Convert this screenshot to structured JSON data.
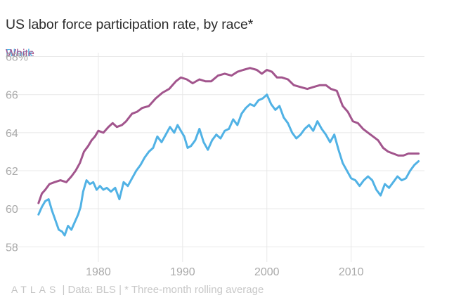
{
  "title": "US labor force participation rate, by race*",
  "legend": {
    "black": "Black",
    "white": "White"
  },
  "footer": {
    "logo": "ATLAS",
    "source": "| Data: BLS | * Three-month rolling average"
  },
  "colors": {
    "black": "#51b2e5",
    "white": "#a2558d",
    "grid": "#e8e8e8",
    "tick": "#aaaaaa"
  },
  "chart_data": {
    "type": "line",
    "title": "US labor force participation rate, by race*",
    "xlabel": "",
    "ylabel": "",
    "xlim": [
      1972,
      2018.7
    ],
    "ylim": [
      57.2,
      68.5
    ],
    "y_ticks": [
      58,
      60,
      62,
      64,
      66,
      68
    ],
    "y_tick_labels": [
      "58",
      "60",
      "62",
      "64",
      "66",
      "68%"
    ],
    "x_ticks": [
      1980,
      1990,
      2000,
      2010
    ],
    "x_tick_labels": [
      "1980",
      "1990",
      "2000",
      "2010"
    ],
    "grid": true,
    "series": [
      {
        "name": "White",
        "color": "#a2558d",
        "x": [
          1972.9,
          1973.3,
          1973.7,
          1974.2,
          1974.8,
          1975.5,
          1976.2,
          1976.8,
          1977.3,
          1977.8,
          1978.3,
          1978.8,
          1979.2,
          1979.6,
          1980.0,
          1980.6,
          1981.2,
          1981.7,
          1982.2,
          1982.8,
          1983.3,
          1984.0,
          1984.6,
          1985.2,
          1986.0,
          1986.8,
          1987.6,
          1988.4,
          1989.2,
          1989.8,
          1990.5,
          1991.2,
          1992.0,
          1992.7,
          1993.4,
          1994.2,
          1995.0,
          1995.8,
          1996.5,
          1997.2,
          1998.0,
          1998.8,
          1999.4,
          2000.0,
          2000.6,
          2001.2,
          2001.8,
          2002.5,
          2003.2,
          2004.0,
          2004.8,
          2005.5,
          2006.3,
          2007.0,
          2007.6,
          2008.3,
          2009.0,
          2009.6,
          2010.2,
          2010.8,
          2011.4,
          2012.0,
          2012.6,
          2013.2,
          2013.8,
          2014.4,
          2015.0,
          2015.6,
          2016.2,
          2016.8,
          2017.4,
          2018.0
        ],
        "values": [
          60.3,
          60.8,
          61.0,
          61.3,
          61.4,
          61.5,
          61.4,
          61.7,
          62.0,
          62.4,
          63.0,
          63.3,
          63.6,
          63.8,
          64.1,
          64.0,
          64.3,
          64.5,
          64.3,
          64.4,
          64.6,
          65.0,
          65.1,
          65.3,
          65.4,
          65.8,
          66.1,
          66.3,
          66.7,
          66.9,
          66.8,
          66.6,
          66.8,
          66.7,
          66.7,
          67.0,
          67.1,
          67.0,
          67.2,
          67.3,
          67.4,
          67.3,
          67.1,
          67.3,
          67.2,
          66.9,
          66.9,
          66.8,
          66.5,
          66.4,
          66.3,
          66.4,
          66.5,
          66.5,
          66.3,
          66.2,
          65.4,
          65.1,
          64.6,
          64.5,
          64.2,
          64.0,
          63.8,
          63.6,
          63.2,
          63.0,
          62.9,
          62.8,
          62.8,
          62.9,
          62.9,
          62.9
        ]
      },
      {
        "name": "Black",
        "color": "#51b2e5",
        "x": [
          1972.9,
          1973.3,
          1973.7,
          1974.1,
          1974.5,
          1974.9,
          1975.3,
          1975.7,
          1976.0,
          1976.4,
          1976.8,
          1977.2,
          1977.6,
          1977.9,
          1978.2,
          1978.6,
          1979.0,
          1979.4,
          1979.8,
          1980.2,
          1980.6,
          1981.0,
          1981.5,
          1982.0,
          1982.5,
          1983.0,
          1983.5,
          1984.0,
          1984.5,
          1985.0,
          1985.5,
          1986.0,
          1986.5,
          1987.0,
          1987.5,
          1988.0,
          1988.5,
          1989.0,
          1989.4,
          1989.8,
          1990.2,
          1990.6,
          1991.0,
          1991.5,
          1992.0,
          1992.5,
          1993.0,
          1993.5,
          1994.0,
          1994.5,
          1995.0,
          1995.5,
          1996.0,
          1996.5,
          1997.0,
          1997.5,
          1998.0,
          1998.5,
          1999.0,
          1999.5,
          2000.0,
          2000.5,
          2001.0,
          2001.5,
          2002.0,
          2002.5,
          2003.0,
          2003.5,
          2004.0,
          2004.5,
          2005.0,
          2005.5,
          2006.0,
          2006.5,
          2007.0,
          2007.5,
          2008.0,
          2008.5,
          2009.0,
          2009.5,
          2010.0,
          2010.5,
          2011.0,
          2011.5,
          2012.0,
          2012.5,
          2013.0,
          2013.5,
          2014.0,
          2014.5,
          2015.0,
          2015.5,
          2016.0,
          2016.5,
          2017.0,
          2017.5,
          2018.0
        ],
        "values": [
          59.7,
          60.1,
          60.4,
          60.5,
          59.9,
          59.4,
          58.9,
          58.8,
          58.6,
          59.1,
          58.9,
          59.3,
          59.7,
          60.1,
          60.9,
          61.5,
          61.3,
          61.4,
          61.0,
          61.2,
          61.0,
          61.1,
          60.9,
          61.1,
          60.5,
          61.4,
          61.2,
          61.6,
          62.0,
          62.3,
          62.7,
          63.0,
          63.2,
          63.8,
          63.5,
          63.9,
          64.3,
          64.0,
          64.4,
          64.1,
          63.8,
          63.2,
          63.3,
          63.6,
          64.2,
          63.5,
          63.1,
          63.6,
          63.9,
          63.7,
          64.1,
          64.2,
          64.7,
          64.4,
          65.0,
          65.3,
          65.5,
          65.4,
          65.7,
          65.8,
          66.0,
          65.5,
          65.2,
          65.4,
          64.8,
          64.5,
          64.0,
          63.7,
          63.9,
          64.2,
          64.4,
          64.1,
          64.6,
          64.2,
          63.9,
          63.5,
          63.9,
          63.1,
          62.4,
          62.0,
          61.6,
          61.5,
          61.2,
          61.5,
          61.7,
          61.5,
          61.0,
          60.7,
          61.3,
          61.1,
          61.4,
          61.7,
          61.5,
          61.6,
          62.0,
          62.3,
          62.5
        ]
      }
    ]
  }
}
